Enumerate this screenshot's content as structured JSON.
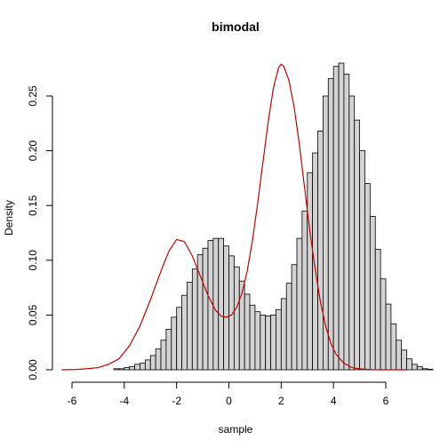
{
  "chart_data": {
    "type": "histogram",
    "title": "bimodal",
    "xlabel": "sample",
    "ylabel": "Density",
    "xlim": [
      -6.5,
      7.0
    ],
    "ylim": [
      0,
      0.285
    ],
    "x_ticks": [
      -6,
      -4,
      -2,
      0,
      2,
      4,
      6
    ],
    "y_ticks": [
      0.0,
      0.05,
      0.1,
      0.15,
      0.2,
      0.25
    ],
    "y_tick_labels": [
      "0.00",
      "0.05",
      "0.10",
      "0.15",
      "0.20",
      "0.25"
    ],
    "bin_width": 0.2,
    "bins_start": -6.0,
    "density": [
      0,
      0,
      0,
      0,
      0,
      0,
      0,
      0,
      0.001,
      0.001,
      0.002,
      0.003,
      0.005,
      0.006,
      0.009,
      0.013,
      0.019,
      0.027,
      0.037,
      0.048,
      0.057,
      0.068,
      0.08,
      0.092,
      0.105,
      0.111,
      0.118,
      0.12,
      0.12,
      0.113,
      0.104,
      0.094,
      0.081,
      0.069,
      0.059,
      0.053,
      0.05,
      0.049,
      0.05,
      0.055,
      0.065,
      0.079,
      0.096,
      0.12,
      0.145,
      0.18,
      0.198,
      0.218,
      0.25,
      0.266,
      0.277,
      0.28,
      0.27,
      0.25,
      0.228,
      0.2,
      0.17,
      0.14,
      0.11,
      0.083,
      0.06,
      0.042,
      0.027,
      0.018,
      0.01,
      0.005,
      0.003,
      0.001,
      0.0005
    ],
    "density_curve": {
      "color": "#cc0000",
      "x": [
        -6.4,
        -5.8,
        -5.4,
        -5.0,
        -4.6,
        -4.2,
        -3.8,
        -3.4,
        -3.0,
        -2.6,
        -2.3,
        -2.0,
        -1.7,
        -1.4,
        -1.1,
        -0.8,
        -0.5,
        -0.3,
        -0.1,
        0.1,
        0.3,
        0.5,
        0.7,
        0.9,
        1.1,
        1.3,
        1.5,
        1.7,
        1.9,
        2.0,
        2.1,
        2.3,
        2.5,
        2.7,
        2.9,
        3.1,
        3.3,
        3.5,
        3.7,
        3.9,
        4.1,
        4.4,
        4.7,
        5.0,
        5.4,
        5.8,
        6.2,
        6.8
      ],
      "y": [
        0.0,
        0.0003,
        0.001,
        0.002,
        0.005,
        0.01,
        0.022,
        0.04,
        0.064,
        0.09,
        0.108,
        0.119,
        0.117,
        0.104,
        0.086,
        0.068,
        0.054,
        0.049,
        0.048,
        0.05,
        0.057,
        0.07,
        0.09,
        0.118,
        0.152,
        0.189,
        0.226,
        0.257,
        0.276,
        0.279,
        0.277,
        0.264,
        0.239,
        0.205,
        0.165,
        0.126,
        0.092,
        0.062,
        0.04,
        0.024,
        0.014,
        0.006,
        0.002,
        0.0008,
        0.0002,
        0.0,
        0.0,
        0.0
      ]
    },
    "grid": false,
    "legend": "none"
  }
}
